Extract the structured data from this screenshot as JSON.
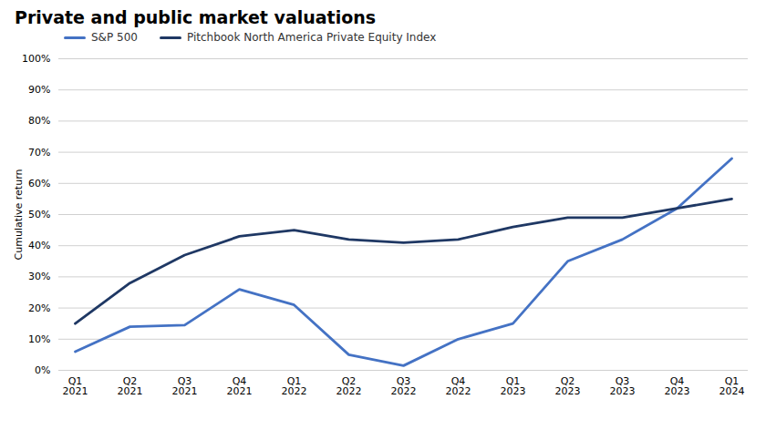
{
  "chart_data": {
    "type": "line",
    "title": "Private and public market valuations",
    "y_label": "Cumulative return",
    "categories": [
      "Q1\n2021",
      "Q2\n2021",
      "Q3\n2021",
      "Q4\n2021",
      "Q1\n2022",
      "Q2\n2022",
      "Q3\n2022",
      "Q4\n2022",
      "Q1\n2023",
      "Q2\n2023",
      "Q3\n2023",
      "Q4\n2023",
      "Q1\n2024"
    ],
    "series": [
      {
        "name": "S&P 500",
        "color": "#4472C4",
        "values": [
          6,
          14,
          14.5,
          26,
          21,
          5,
          1.5,
          10,
          15,
          35,
          42,
          52,
          68
        ]
      },
      {
        "name": "Pitchbook North America Private Equity Index",
        "color": "#1F3864",
        "values": [
          15,
          28,
          37,
          43,
          45,
          42,
          41,
          42,
          46,
          49,
          49,
          52,
          55
        ]
      }
    ],
    "ylim": [
      0,
      100
    ],
    "yticks": [
      {
        "value": 0,
        "label": "0%"
      },
      {
        "value": 10,
        "label": "10%"
      },
      {
        "value": 20,
        "label": "20%"
      },
      {
        "value": 30,
        "label": "30%"
      },
      {
        "value": 40,
        "label": "40%"
      },
      {
        "value": 50,
        "label": "50%"
      },
      {
        "value": 60,
        "label": "60%"
      },
      {
        "value": 70,
        "label": "70%"
      },
      {
        "value": 80,
        "label": "80%"
      },
      {
        "value": 90,
        "label": "90%"
      },
      {
        "value": 100,
        "label": "100%"
      }
    ],
    "grid": true,
    "legend": "upper left"
  }
}
